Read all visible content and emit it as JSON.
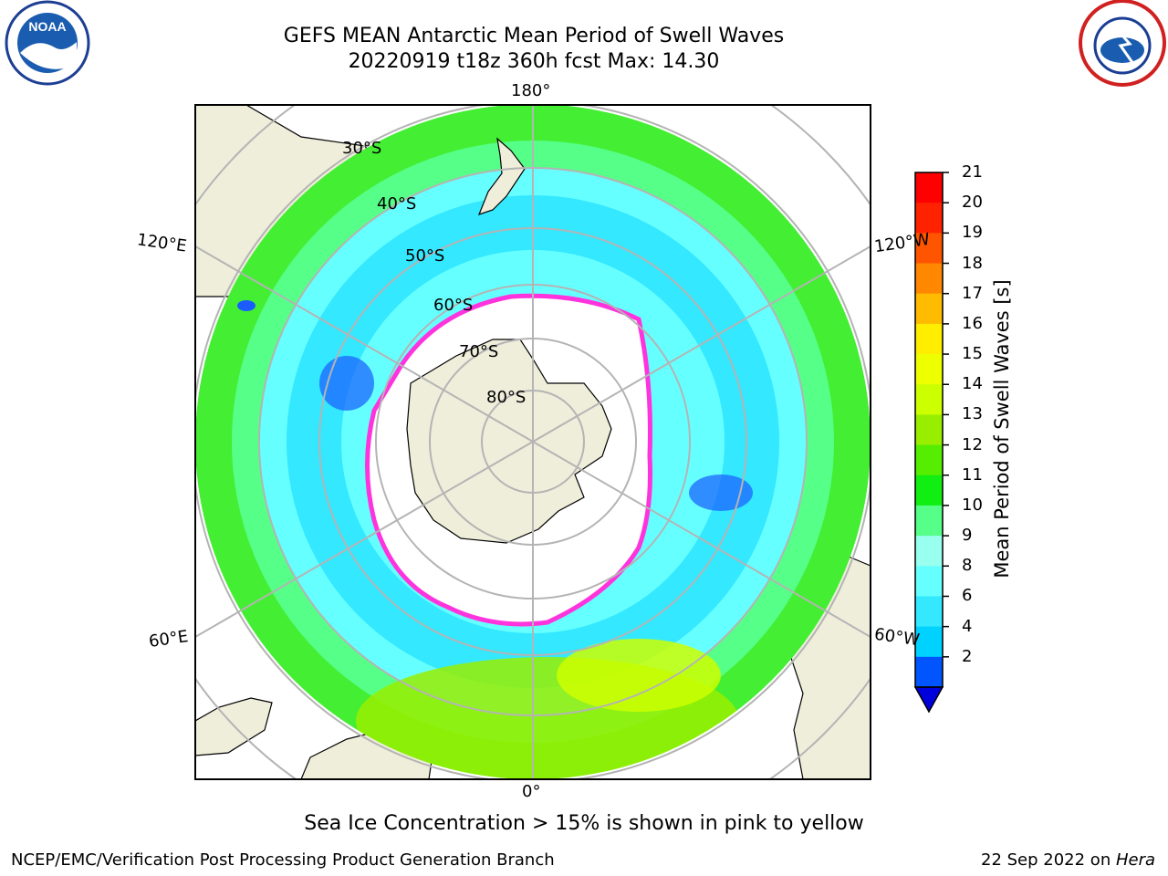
{
  "title": {
    "line1": "GEFS MEAN Antarctic Mean Period of Swell Waves",
    "line2": "20220919 t18z 360h fcst   Max: 14.30"
  },
  "map": {
    "projection": "south-polar-stereographic",
    "latitude_labels": [
      "30°S",
      "40°S",
      "50°S",
      "60°S",
      "70°S",
      "80°S"
    ],
    "longitude_labels": {
      "top": "180°",
      "bottom": "0°",
      "left_upper": "120°E",
      "left_lower": "60°E",
      "right_upper": "120°W",
      "right_lower": "60°W"
    },
    "colors": {
      "land": "#efeedb",
      "ice_free_center": "#ffffff",
      "grid": "#b4b4b4",
      "sea_ice_edge": "#ff33dd"
    }
  },
  "colorbar": {
    "label": "Mean Period of Swell Waves [s]",
    "ticks": [
      "21",
      "20",
      "19",
      "18",
      "17",
      "16",
      "15",
      "14",
      "13",
      "12",
      "11",
      "10",
      "9",
      "8",
      "6",
      "4",
      "2"
    ],
    "colors_bottom_to_top": [
      "#0055ff",
      "#00d2ff",
      "#33e8ff",
      "#66ffff",
      "#99ffee",
      "#55ff88",
      "#11ee11",
      "#55ee00",
      "#99ee00",
      "#ccff00",
      "#eeff00",
      "#ffee00",
      "#ffbb00",
      "#ff8800",
      "#ff5500",
      "#ff2200",
      "#ff0000"
    ],
    "under_color": "#0000dd"
  },
  "footer": {
    "note": "Sea Ice Concentration > 15% is shown in pink to yellow",
    "left": "NCEP/EMC/Verification Post Processing Product Generation Branch",
    "right_date": "22 Sep 2022 on ",
    "right_host": "Hera"
  },
  "logos": {
    "noaa_text": "NOAA",
    "noaa_icon": "noaa-logo-icon",
    "nws_icon": "nws-logo-icon"
  }
}
